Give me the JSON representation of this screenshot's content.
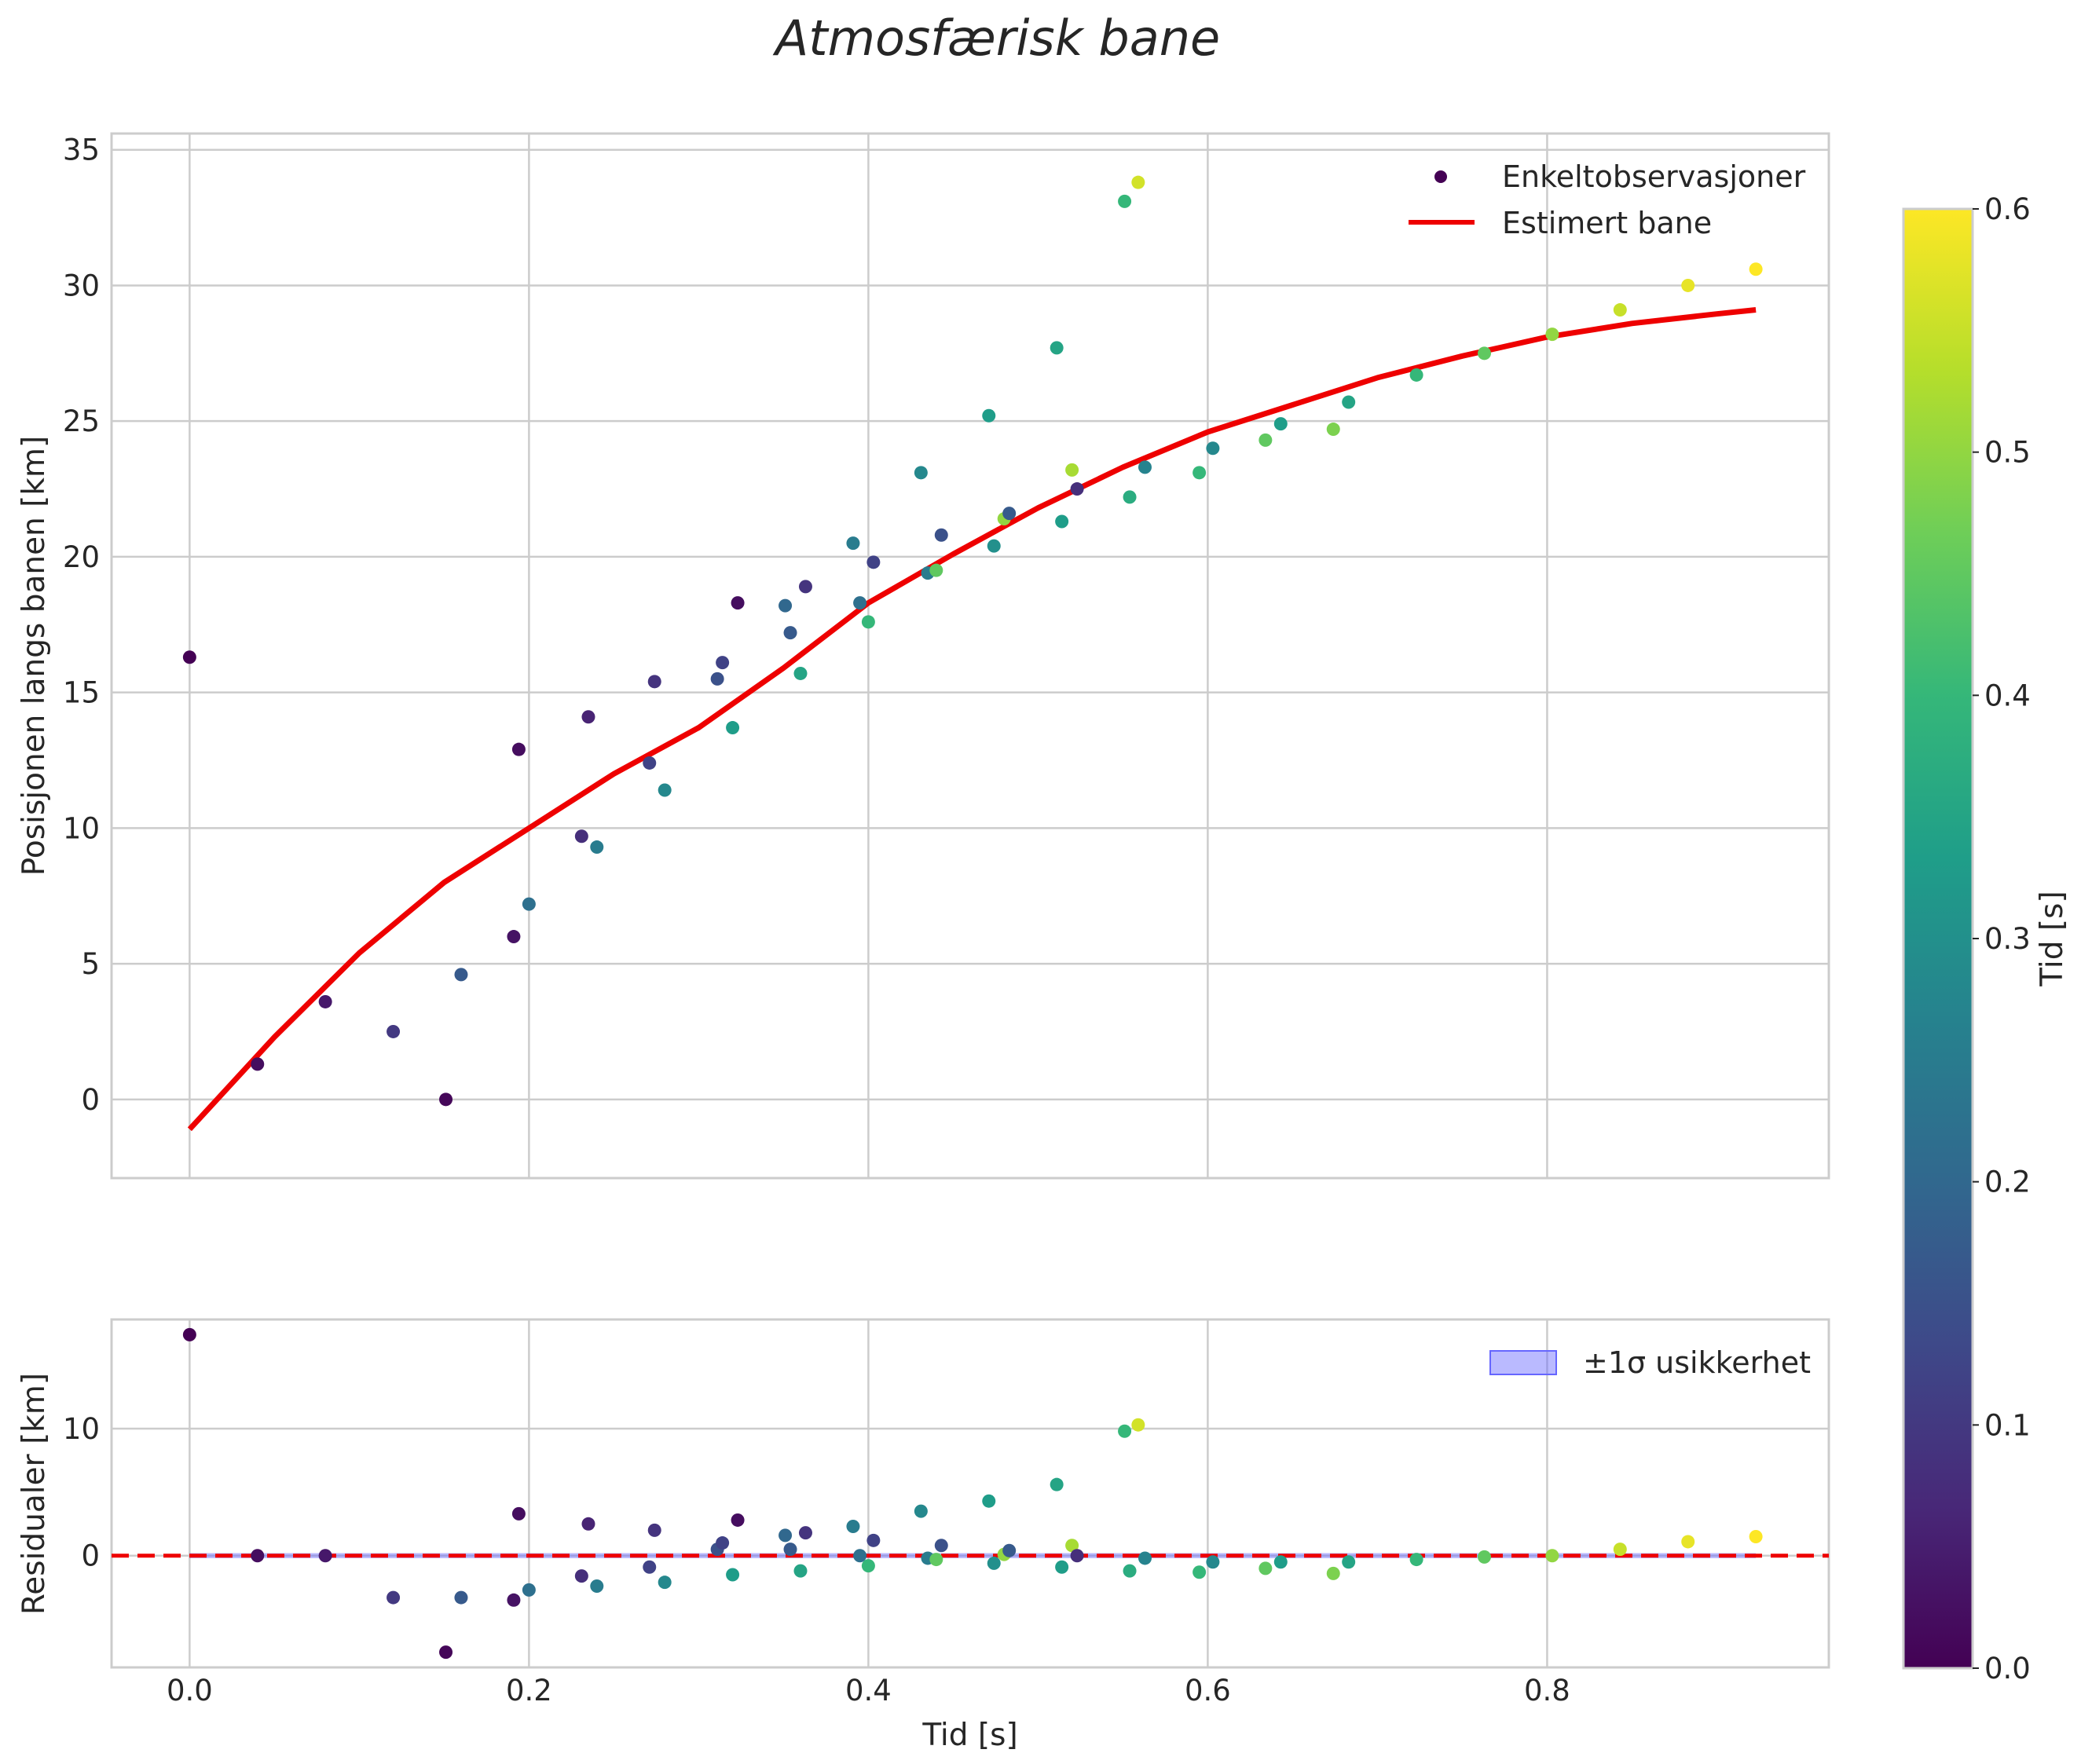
{
  "title": "Atmosfærisk bane",
  "chart_data": [
    {
      "type": "scatter",
      "name": "main",
      "xlabel": "",
      "ylabel": "Posisjonen langs banen [km]",
      "xlim": [
        -0.046,
        0.966
      ],
      "ylim": [
        -2.9,
        35.6
      ],
      "xticks": [
        0.0,
        0.2,
        0.4,
        0.6,
        0.8
      ],
      "xticklabels": [
        "",
        "",
        "",
        "",
        ""
      ],
      "yticks": [
        0,
        5,
        10,
        15,
        20,
        25,
        30,
        35
      ],
      "yticklabels": [
        "0",
        "5",
        "10",
        "15",
        "20",
        "25",
        "30",
        "35"
      ],
      "legend": {
        "location": "top-right",
        "entries": [
          {
            "label": "Enkeltobservasjoner",
            "kind": "scatter",
            "color": "#440154"
          },
          {
            "label": "Estimert bane",
            "kind": "line",
            "color": "#ee0000"
          }
        ]
      },
      "series": [
        {
          "name": "Enkeltobservasjoner",
          "kind": "scatter",
          "points": [
            [
              0.0,
              16.3,
              0.0
            ],
            [
              0.04,
              1.3,
              0.02
            ],
            [
              0.08,
              3.6,
              0.04
            ],
            [
              0.12,
              2.5,
              0.1
            ],
            [
              0.151,
              0.0,
              0.01
            ],
            [
              0.16,
              4.6,
              0.17
            ],
            [
              0.191,
              6.0,
              0.03
            ],
            [
              0.194,
              12.9,
              0.02
            ],
            [
              0.2,
              7.2,
              0.22
            ],
            [
              0.231,
              9.7,
              0.08
            ],
            [
              0.235,
              14.1,
              0.06
            ],
            [
              0.24,
              9.3,
              0.25
            ],
            [
              0.271,
              12.4,
              0.12
            ],
            [
              0.274,
              15.4,
              0.09
            ],
            [
              0.28,
              11.4,
              0.28
            ],
            [
              0.311,
              15.5,
              0.15
            ],
            [
              0.314,
              16.1,
              0.12
            ],
            [
              0.32,
              13.7,
              0.33
            ],
            [
              0.323,
              18.3,
              0.02
            ],
            [
              0.351,
              18.2,
              0.2
            ],
            [
              0.354,
              17.2,
              0.17
            ],
            [
              0.36,
              15.7,
              0.35
            ],
            [
              0.363,
              18.9,
              0.09
            ],
            [
              0.391,
              20.5,
              0.25
            ],
            [
              0.395,
              18.3,
              0.22
            ],
            [
              0.4,
              17.6,
              0.4
            ],
            [
              0.403,
              19.8,
              0.12
            ],
            [
              0.431,
              23.1,
              0.28
            ],
            [
              0.435,
              19.4,
              0.25
            ],
            [
              0.44,
              19.5,
              0.45
            ],
            [
              0.443,
              20.8,
              0.15
            ],
            [
              0.471,
              25.2,
              0.33
            ],
            [
              0.474,
              20.4,
              0.3
            ],
            [
              0.48,
              21.4,
              0.5
            ],
            [
              0.483,
              21.6,
              0.17
            ],
            [
              0.511,
              27.7,
              0.35
            ],
            [
              0.514,
              21.3,
              0.33
            ],
            [
              0.52,
              23.2,
              0.52
            ],
            [
              0.523,
              22.5,
              0.08
            ],
            [
              0.551,
              33.1,
              0.4
            ],
            [
              0.554,
              22.2,
              0.37
            ],
            [
              0.559,
              33.8,
              0.56
            ],
            [
              0.563,
              23.3,
              0.27
            ],
            [
              0.595,
              23.1,
              0.4
            ],
            [
              0.603,
              24.0,
              0.28
            ],
            [
              0.634,
              24.3,
              0.45
            ],
            [
              0.643,
              24.9,
              0.33
            ],
            [
              0.674,
              24.7,
              0.48
            ],
            [
              0.683,
              25.7,
              0.35
            ],
            [
              0.723,
              26.7,
              0.4
            ],
            [
              0.763,
              27.5,
              0.45
            ],
            [
              0.803,
              28.2,
              0.5
            ],
            [
              0.843,
              29.1,
              0.55
            ],
            [
              0.883,
              30.0,
              0.58
            ],
            [
              0.923,
              30.6,
              0.6
            ]
          ]
        },
        {
          "name": "Estimert bane",
          "kind": "line",
          "color": "#ee0000",
          "x": [
            0.0,
            0.05,
            0.1,
            0.15,
            0.2,
            0.25,
            0.3,
            0.35,
            0.4,
            0.45,
            0.5,
            0.55,
            0.6,
            0.65,
            0.7,
            0.75,
            0.8,
            0.85,
            0.9,
            0.923
          ],
          "y": [
            -1.1,
            2.3,
            5.4,
            8.0,
            10.0,
            12.0,
            13.7,
            15.9,
            18.3,
            20.1,
            21.8,
            23.3,
            24.6,
            25.6,
            26.6,
            27.4,
            28.1,
            28.6,
            28.95,
            29.1
          ]
        }
      ]
    },
    {
      "type": "scatter",
      "name": "residuals",
      "xlabel": "Tid [s]",
      "ylabel": "Residualer [km]",
      "xlim": [
        -0.046,
        0.966
      ],
      "ylim": [
        -8.8,
        18.6
      ],
      "xticks": [
        0.0,
        0.2,
        0.4,
        0.6,
        0.8
      ],
      "xticklabels": [
        "0.0",
        "0.2",
        "0.4",
        "0.6",
        "0.8"
      ],
      "yticks": [
        0,
        10
      ],
      "yticklabels": [
        "0",
        "10"
      ],
      "reference_line": {
        "y": 0,
        "style": "dashed",
        "color": "#ee0000"
      },
      "band": {
        "label": "±1σ usikkerhet",
        "lower": -0.2,
        "upper": 0.2,
        "color": "#6666ff"
      },
      "legend": {
        "location": "top-right",
        "entries": [
          {
            "label": "±1σ usikkerhet",
            "kind": "patch",
            "color": "#6666ff"
          }
        ]
      },
      "series": [
        {
          "name": "Residualer",
          "kind": "scatter",
          "points": [
            [
              0.0,
              17.4,
              0.0
            ],
            [
              0.04,
              0.0,
              0.02
            ],
            [
              0.08,
              0.0,
              0.04
            ],
            [
              0.12,
              -3.3,
              0.1
            ],
            [
              0.151,
              -7.6,
              0.01
            ],
            [
              0.16,
              -3.3,
              0.17
            ],
            [
              0.191,
              -3.5,
              0.03
            ],
            [
              0.194,
              3.3,
              0.02
            ],
            [
              0.2,
              -2.7,
              0.22
            ],
            [
              0.231,
              -1.6,
              0.08
            ],
            [
              0.235,
              2.5,
              0.06
            ],
            [
              0.24,
              -2.4,
              0.25
            ],
            [
              0.271,
              -0.9,
              0.12
            ],
            [
              0.274,
              2.0,
              0.09
            ],
            [
              0.28,
              -2.1,
              0.28
            ],
            [
              0.311,
              0.5,
              0.15
            ],
            [
              0.314,
              1.0,
              0.12
            ],
            [
              0.32,
              -1.5,
              0.33
            ],
            [
              0.323,
              2.8,
              0.02
            ],
            [
              0.351,
              1.6,
              0.2
            ],
            [
              0.354,
              0.5,
              0.17
            ],
            [
              0.36,
              -1.2,
              0.35
            ],
            [
              0.363,
              1.8,
              0.09
            ],
            [
              0.391,
              2.3,
              0.25
            ],
            [
              0.395,
              0.0,
              0.22
            ],
            [
              0.4,
              -0.8,
              0.4
            ],
            [
              0.403,
              1.2,
              0.12
            ],
            [
              0.431,
              3.5,
              0.28
            ],
            [
              0.435,
              -0.2,
              0.25
            ],
            [
              0.44,
              -0.3,
              0.45
            ],
            [
              0.443,
              0.8,
              0.15
            ],
            [
              0.471,
              4.3,
              0.33
            ],
            [
              0.474,
              -0.6,
              0.3
            ],
            [
              0.48,
              0.1,
              0.5
            ],
            [
              0.483,
              0.4,
              0.17
            ],
            [
              0.511,
              5.6,
              0.35
            ],
            [
              0.514,
              -0.9,
              0.33
            ],
            [
              0.52,
              0.8,
              0.52
            ],
            [
              0.523,
              0.0,
              0.08
            ],
            [
              0.551,
              9.8,
              0.4
            ],
            [
              0.554,
              -1.2,
              0.37
            ],
            [
              0.559,
              10.3,
              0.56
            ],
            [
              0.563,
              -0.2,
              0.27
            ],
            [
              0.595,
              -1.3,
              0.4
            ],
            [
              0.603,
              -0.5,
              0.28
            ],
            [
              0.634,
              -1.0,
              0.45
            ],
            [
              0.643,
              -0.5,
              0.33
            ],
            [
              0.674,
              -1.4,
              0.48
            ],
            [
              0.683,
              -0.5,
              0.35
            ],
            [
              0.723,
              -0.3,
              0.4
            ],
            [
              0.763,
              -0.1,
              0.45
            ],
            [
              0.803,
              0.0,
              0.5
            ],
            [
              0.843,
              0.5,
              0.55
            ],
            [
              0.883,
              1.1,
              0.58
            ],
            [
              0.923,
              1.5,
              0.6
            ]
          ]
        }
      ]
    }
  ],
  "colorbar": {
    "label": "Tid [s]",
    "colormap": "viridis",
    "range": [
      0.0,
      0.6
    ],
    "ticks": [
      0.0,
      0.1,
      0.2,
      0.3,
      0.4,
      0.5,
      0.6
    ],
    "ticklabels": [
      "0.0",
      "0.1",
      "0.2",
      "0.3",
      "0.4",
      "0.5",
      "0.6"
    ],
    "stops": [
      "#440154",
      "#482878",
      "#3e4989",
      "#31688e",
      "#26828e",
      "#1f9e89",
      "#35b779",
      "#6ece58",
      "#b5de2b",
      "#fde725"
    ]
  }
}
